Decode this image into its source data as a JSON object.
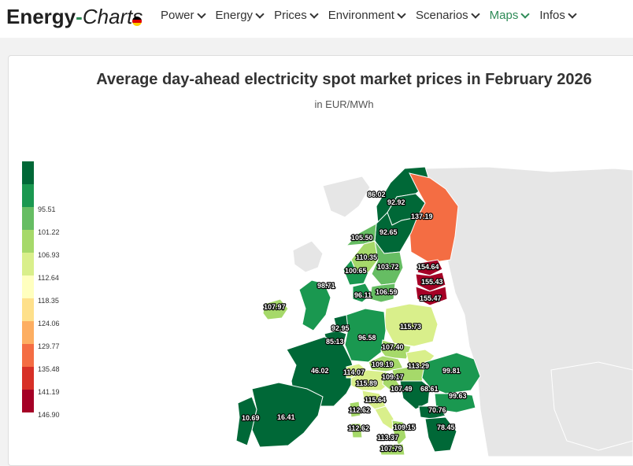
{
  "header": {
    "logo_text_a": "Energy",
    "logo_text_b": "-",
    "logo_text_c": "Charts",
    "nav": [
      {
        "label": "Power",
        "active": false
      },
      {
        "label": "Energy",
        "active": false
      },
      {
        "label": "Prices",
        "active": false
      },
      {
        "label": "Environment",
        "active": false
      },
      {
        "label": "Scenarios",
        "active": false
      },
      {
        "label": "Maps",
        "active": true
      },
      {
        "label": "Infos",
        "active": false
      }
    ]
  },
  "map": {
    "title": "Average day-ahead electricity spot market prices in February 2026",
    "subtitle": "in EUR/MWh",
    "legend": [
      {
        "label": "",
        "color": "#006837"
      },
      {
        "label": "95.51",
        "color": "#1a9850"
      },
      {
        "label": "101.22",
        "color": "#66bd63"
      },
      {
        "label": "106.93",
        "color": "#a6d96a"
      },
      {
        "label": "112.64",
        "color": "#d9ef8b"
      },
      {
        "label": "118.35",
        "color": "#ffffbf"
      },
      {
        "label": "124.06",
        "color": "#fee08b"
      },
      {
        "label": "129.77",
        "color": "#fdae61"
      },
      {
        "label": "135.48",
        "color": "#f46d43"
      },
      {
        "label": "141.19",
        "color": "#d73027"
      },
      {
        "label": "146.90",
        "color": "#a50026"
      }
    ],
    "regions": [
      {
        "name": "NO4",
        "price": "86.02"
      },
      {
        "name": "SE1",
        "price": "92.92"
      },
      {
        "name": "FI",
        "price": "137.19"
      },
      {
        "name": "SE2",
        "price": "92.65"
      },
      {
        "name": "NO3",
        "price": "105.50"
      },
      {
        "name": "NO1",
        "price": "110.35"
      },
      {
        "name": "SE3",
        "price": "103.72"
      },
      {
        "name": "NO2",
        "price": "100.65"
      },
      {
        "name": "EE",
        "price": "154.64"
      },
      {
        "name": "LV",
        "price": "155.43"
      },
      {
        "name": "LT",
        "price": "155.47"
      },
      {
        "name": "GB",
        "price": "98.71"
      },
      {
        "name": "DK1",
        "price": "96.11"
      },
      {
        "name": "SE4",
        "price": "106.59"
      },
      {
        "name": "IE",
        "price": "107.97"
      },
      {
        "name": "PL",
        "price": "115.73"
      },
      {
        "name": "NL",
        "price": "92.95"
      },
      {
        "name": "BE",
        "price": "85.13"
      },
      {
        "name": "DE",
        "price": "96.58"
      },
      {
        "name": "CZ",
        "price": "107.40"
      },
      {
        "name": "SK",
        "price": "113.29"
      },
      {
        "name": "AT",
        "price": "109.19"
      },
      {
        "name": "HU",
        "price": "109.17"
      },
      {
        "name": "RO",
        "price": "99.81"
      },
      {
        "name": "FR",
        "price": "46.02"
      },
      {
        "name": "CH",
        "price": "114.07"
      },
      {
        "name": "IT-N",
        "price": "115.89"
      },
      {
        "name": "SI",
        "price": "107.49"
      },
      {
        "name": "RS",
        "price": "68.61"
      },
      {
        "name": "BG",
        "price": "99.63"
      },
      {
        "name": "IT-CN",
        "price": "115.64"
      },
      {
        "name": "MK",
        "price": "70.76"
      },
      {
        "name": "ES",
        "price": "16.41"
      },
      {
        "name": "PT",
        "price": "10.69"
      },
      {
        "name": "SARD",
        "price": "112.62"
      },
      {
        "name": "IT-CS",
        "price": "113.37"
      },
      {
        "name": "IT-S",
        "price": "109.15"
      },
      {
        "name": "GR",
        "price": "78.45"
      },
      {
        "name": "SARD2",
        "price": "112.62"
      },
      {
        "name": "SICI",
        "price": "107.79"
      }
    ]
  }
}
